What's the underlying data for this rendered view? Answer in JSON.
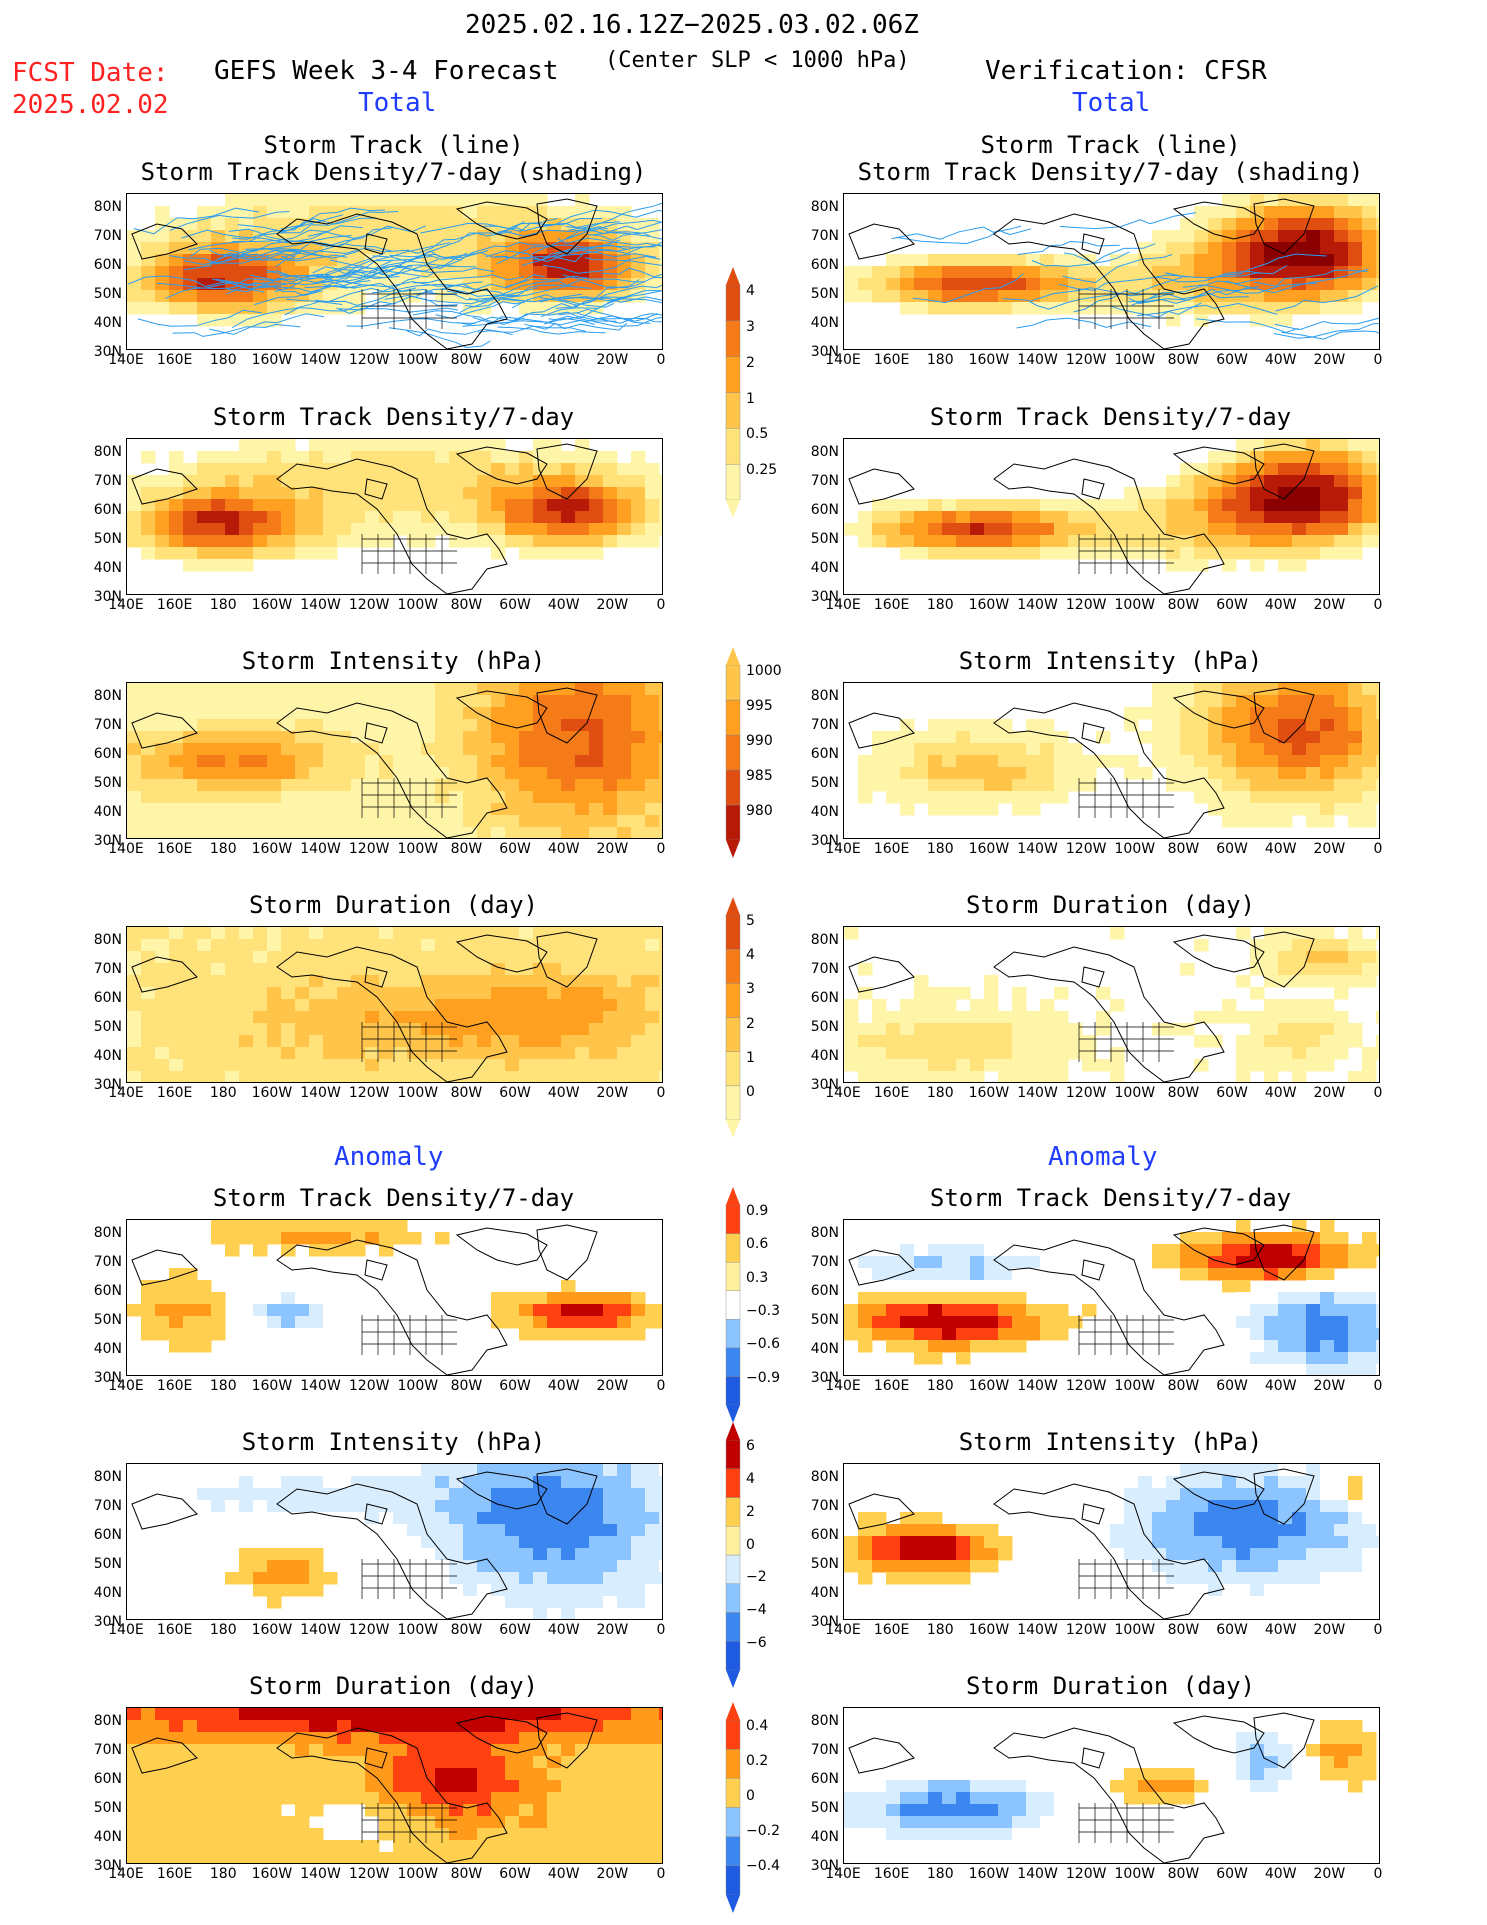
{
  "header": {
    "period": "2025.02.16.12Z−2025.03.02.06Z",
    "fcst_label": "FCST Date:",
    "fcst_date": "2025.02.02",
    "forecast_title": "GEFS Week 3-4 Forecast",
    "slp_note": "(Center SLP < 1000 hPa)",
    "verification": "Verification: CFSR",
    "total_label": "Total",
    "anomaly_label": "Anomaly"
  },
  "colors": {
    "total_scale": [
      "#fff5a8",
      "#ffe27a",
      "#ffc44a",
      "#ffa020",
      "#f57a18",
      "#e04d10",
      "#b81a08",
      "#8a0000"
    ],
    "anom_scale": [
      "#1e5be0",
      "#3c86f0",
      "#8cc4ff",
      "#d8eeff",
      "#ffffff",
      "#fff0a0",
      "#ffd050",
      "#ff9a1a",
      "#ff4010",
      "#c00000"
    ],
    "track_line": "#2b9df0",
    "text_red": "#ff2020",
    "text_blue": "#1f3cff"
  },
  "axes": {
    "lat_ticks": [
      "80N",
      "70N",
      "60N",
      "50N",
      "40N",
      "30N"
    ],
    "lon_ticks": [
      "140E",
      "160E",
      "180",
      "160W",
      "140W",
      "120W",
      "100W",
      "80W",
      "60W",
      "40W",
      "20W",
      "0"
    ]
  },
  "chart_data": [
    {
      "type": "heatmap",
      "panel": "forecast-total",
      "title": "Storm Track (line)",
      "subtitle": "Storm Track Density/7-day (shading)"
    },
    {
      "type": "heatmap",
      "panel": "cfsr-total",
      "title": "Storm Track (line)",
      "subtitle": "Storm Track Density/7-day (shading)"
    },
    {
      "type": "heatmap",
      "panel": "forecast-total",
      "title": "Storm Track Density/7-day",
      "colorbar": {
        "values": [
          "0.25",
          "0.5",
          "1",
          "2",
          "3",
          "4"
        ]
      }
    },
    {
      "type": "heatmap",
      "panel": "cfsr-total",
      "title": "Storm Track Density/7-day"
    },
    {
      "type": "heatmap",
      "panel": "forecast-total",
      "title": "Storm Intensity (hPa)",
      "colorbar": {
        "values": [
          "980",
          "985",
          "990",
          "995",
          "1000"
        ]
      }
    },
    {
      "type": "heatmap",
      "panel": "cfsr-total",
      "title": "Storm Intensity (hPa)"
    },
    {
      "type": "heatmap",
      "panel": "forecast-total",
      "title": "Storm Duration (day)",
      "colorbar": {
        "values": [
          "0",
          "1",
          "2",
          "3",
          "4",
          "5"
        ]
      }
    },
    {
      "type": "heatmap",
      "panel": "cfsr-total",
      "title": "Storm Duration (day)"
    },
    {
      "type": "heatmap",
      "panel": "forecast-anomaly",
      "title": "Storm Track Density/7-day",
      "colorbar": {
        "values": [
          "−0.9",
          "−0.6",
          "−0.3",
          "0.3",
          "0.6",
          "0.9"
        ]
      }
    },
    {
      "type": "heatmap",
      "panel": "cfsr-anomaly",
      "title": "Storm Track Density/7-day"
    },
    {
      "type": "heatmap",
      "panel": "forecast-anomaly",
      "title": "Storm Intensity (hPa)",
      "colorbar": {
        "values": [
          "−6",
          "−4",
          "−2",
          "0",
          "2",
          "4",
          "6"
        ]
      }
    },
    {
      "type": "heatmap",
      "panel": "cfsr-anomaly",
      "title": "Storm Intensity (hPa)"
    },
    {
      "type": "heatmap",
      "panel": "forecast-anomaly",
      "title": "Storm Duration (day)",
      "colorbar": {
        "values": [
          "−0.4",
          "−0.2",
          "0",
          "0.2",
          "0.4"
        ]
      }
    },
    {
      "type": "heatmap",
      "panel": "cfsr-anomaly",
      "title": "Storm Duration (day)"
    }
  ]
}
